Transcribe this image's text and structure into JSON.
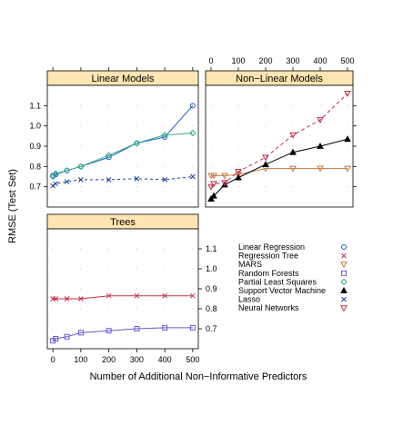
{
  "chart_data": {
    "type": "line",
    "x_tick_labels": [
      "0",
      "100",
      "200",
      "300",
      "400",
      "500"
    ],
    "y_tick_labels": [
      "0.7",
      "0.8",
      "0.9",
      "1.0",
      "1.1"
    ],
    "ylabel": "RMSE (Test Set)",
    "xlabel": "Number of Additional Non−Informative Predictors",
    "xlim": [
      -20,
      520
    ],
    "ylim": [
      0.6,
      1.2
    ],
    "x": [
      0,
      10,
      50,
      100,
      200,
      300,
      400,
      500
    ],
    "panels": [
      {
        "title": "Linear Models",
        "series": [
          {
            "name": "Linear Regression",
            "values": [
              0.755,
              0.76,
              0.78,
              0.8,
              0.845,
              0.915,
              0.945,
              1.1
            ]
          },
          {
            "name": "Partial Least Squares",
            "values": [
              0.75,
              0.765,
              0.78,
              0.8,
              0.855,
              0.915,
              0.955,
              0.965
            ]
          },
          {
            "name": "Lasso",
            "values": [
              0.705,
              0.715,
              0.725,
              0.735,
              0.735,
              0.74,
              0.735,
              0.75
            ]
          }
        ]
      },
      {
        "title": "Non−Linear Models",
        "series": [
          {
            "name": "MARS",
            "values": [
              0.755,
              0.755,
              0.755,
              0.76,
              0.79,
              0.79,
              0.79,
              0.79
            ]
          },
          {
            "name": "Support Vector Machine",
            "values": [
              0.64,
              0.655,
              0.71,
              0.745,
              0.81,
              0.87,
              0.9,
              0.935
            ]
          },
          {
            "name": "Neural Networks",
            "values": [
              0.7,
              0.715,
              0.72,
              0.775,
              0.845,
              0.955,
              1.03,
              1.16
            ]
          }
        ]
      },
      {
        "title": "Trees",
        "series": [
          {
            "name": "Regression Tree",
            "values": [
              0.85,
              0.85,
              0.85,
              0.85,
              0.865,
              0.865,
              0.865,
              0.865
            ]
          },
          {
            "name": "Random Forests",
            "values": [
              0.64,
              0.65,
              0.66,
              0.68,
              0.69,
              0.7,
              0.705,
              0.705
            ]
          }
        ]
      }
    ],
    "legend": [
      {
        "name": "Linear Regression",
        "marker": "circle",
        "color": "#1f5fbf"
      },
      {
        "name": "Regression Tree",
        "marker": "x",
        "color": "#c0304a"
      },
      {
        "name": "MARS",
        "marker": "triangle-down",
        "color": "#c8783c"
      },
      {
        "name": "Random Forests",
        "marker": "square",
        "color": "#6a5acd"
      },
      {
        "name": "Partial Least Squares",
        "marker": "diamond",
        "color": "#3aa88e"
      },
      {
        "name": "Support Vector Machine",
        "marker": "triangle-up-filled",
        "color": "#000000"
      },
      {
        "name": "Lasso",
        "marker": "x",
        "color": "#1f3f8f"
      },
      {
        "name": "Neural Networks",
        "marker": "triangle-down",
        "color": "#c0304a"
      }
    ],
    "legend_placement": "bottom-right",
    "grid": true,
    "strip_color": "#ffe5b3"
  }
}
